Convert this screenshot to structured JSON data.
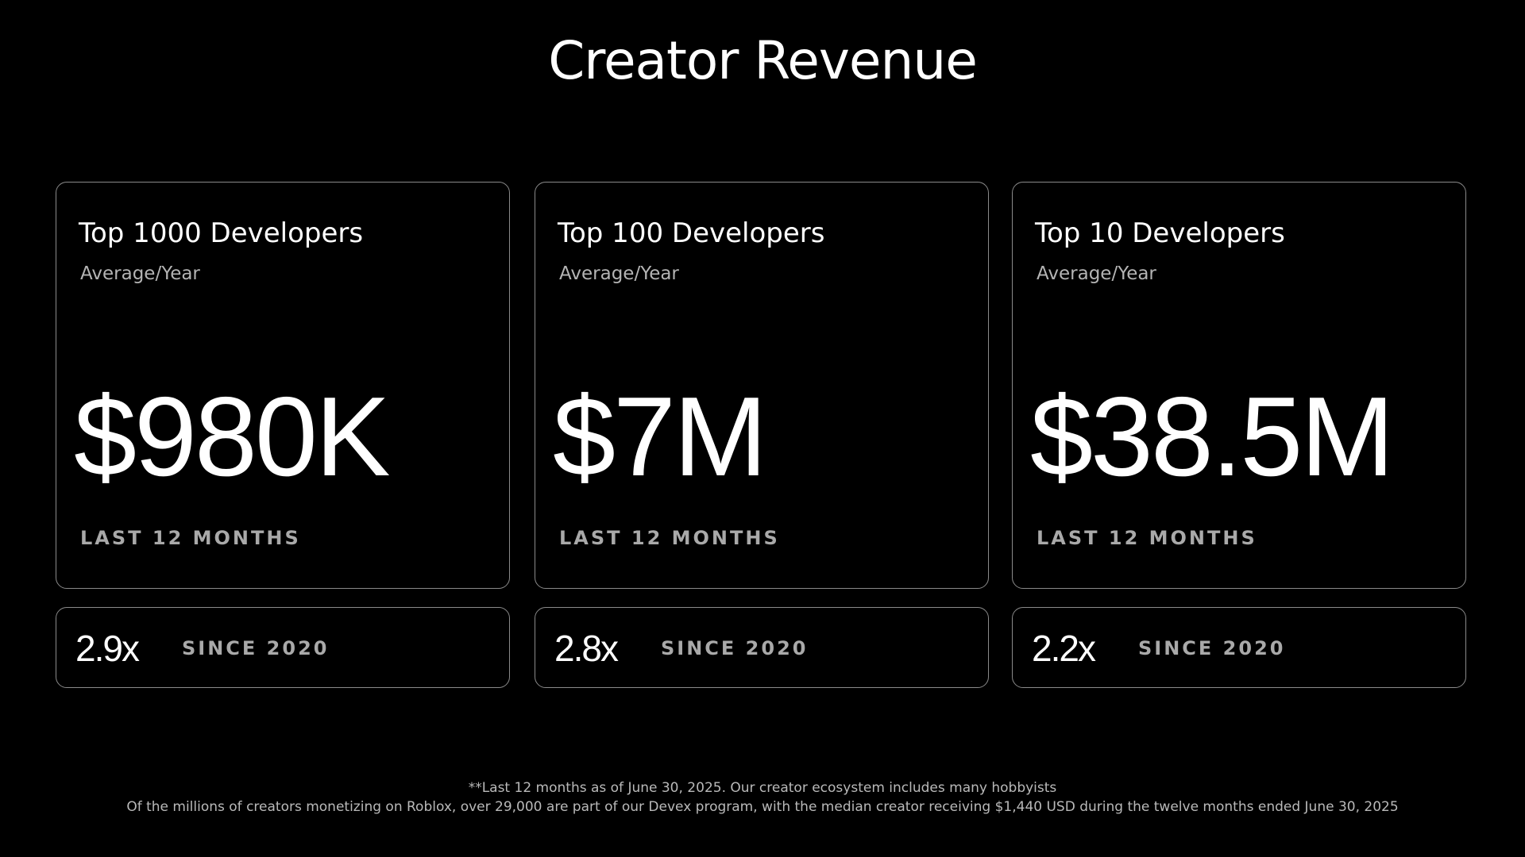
{
  "title": "Creator Revenue",
  "cards": [
    {
      "heading": "Top 1000 Developers",
      "subheading": "Average/Year",
      "amount": "$980K",
      "period": "LAST 12 MONTHS",
      "multiplier": "2.9x",
      "since": "SINCE 2020"
    },
    {
      "heading": "Top 100 Developers",
      "subheading": "Average/Year",
      "amount": "$7M",
      "period": "LAST 12 MONTHS",
      "multiplier": "2.8x",
      "since": "SINCE 2020"
    },
    {
      "heading": "Top 10 Developers",
      "subheading": "Average/Year",
      "amount": "$38.5M",
      "period": "LAST 12 MONTHS",
      "multiplier": "2.2x",
      "since": "SINCE 2020"
    }
  ],
  "footnotes": [
    "**Last 12 months as of June 30, 2025. Our creator ecosystem includes many hobbyists",
    "Of the millions of creators monetizing on Roblox, over 29,000 are part of our Devex program, with the median creator receiving $1,440 USD during the twelve months ended June 30, 2025"
  ]
}
